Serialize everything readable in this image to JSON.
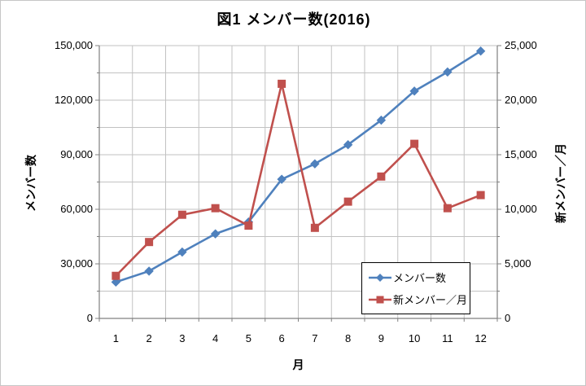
{
  "chart_data": {
    "type": "line",
    "title": "図1 メンバー数(2016)",
    "categories": [
      "1",
      "2",
      "3",
      "4",
      "5",
      "6",
      "7",
      "8",
      "9",
      "10",
      "11",
      "12"
    ],
    "x_axis": {
      "title": "月"
    },
    "left_axis": {
      "title": "メンバー数",
      "min": 0,
      "max": 150000,
      "major_step": 30000,
      "minor_step": 15000,
      "tick_labels": [
        "0",
        "30,000",
        "60,000",
        "90,000",
        "120,000",
        "150,000"
      ]
    },
    "right_axis": {
      "title": "新メンバー／月",
      "min": 0,
      "max": 25000,
      "major_step": 5000,
      "minor_step": 2500,
      "tick_labels": [
        "0",
        "5,000",
        "10,000",
        "15,000",
        "20,000",
        "25,000"
      ]
    },
    "grid": {
      "horizontal_interval_left_axis": 15000,
      "vertical_per_month": true,
      "grid_on": true
    },
    "legend": {
      "position": "inside-bottom-right",
      "bordered": true
    },
    "series": [
      {
        "name": "メンバー数",
        "axis": "left",
        "marker": "diamond",
        "color": "#4F81BD",
        "values": [
          20000,
          26000,
          36500,
          46500,
          53000,
          76500,
          85000,
          95500,
          109000,
          125000,
          135500,
          147000
        ]
      },
      {
        "name": "新メンバー／月",
        "axis": "right",
        "marker": "square",
        "color": "#C0504D",
        "values": [
          3900,
          7000,
          9500,
          10100,
          8500,
          21500,
          8300,
          10700,
          13000,
          16000,
          10100,
          11300
        ]
      }
    ]
  },
  "colors": {
    "background": "#FFFFFF",
    "gridline": "#C2C2C2",
    "axis_line": "#808080",
    "text": "#000000",
    "legend_border": "#000000"
  }
}
